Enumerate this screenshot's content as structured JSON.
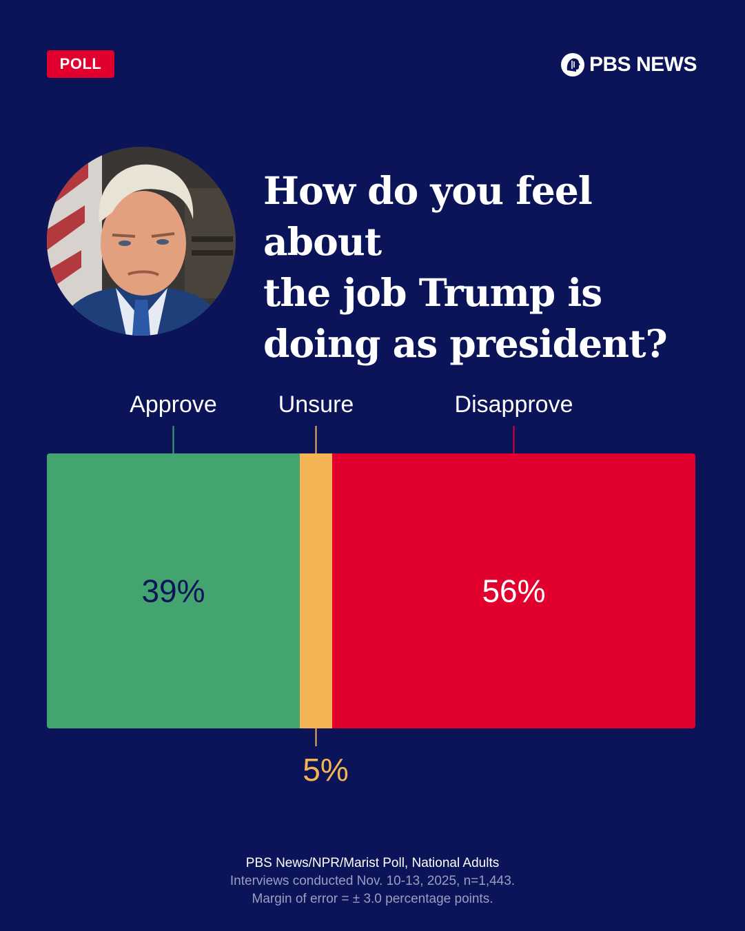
{
  "badge": {
    "label": "POLL"
  },
  "brand": {
    "name": "PBS NEWS",
    "logo_icon": "pbs-head-logo-icon"
  },
  "portrait": {
    "icon": "portrait-photo"
  },
  "question": {
    "lines": [
      "How do you feel about",
      "the job Trump is",
      "doing as president?"
    ]
  },
  "chart_data": {
    "type": "bar",
    "orientation": "horizontal-stacked",
    "categories": [
      "Approve",
      "Unsure",
      "Disapprove"
    ],
    "values": [
      39,
      5,
      56
    ],
    "value_labels": [
      "39%",
      "5%",
      "56%"
    ],
    "colors": [
      "#43a46f",
      "#f5b454",
      "#e2002e"
    ],
    "label_colors": [
      "#0b1458",
      "#f5b454",
      "#ffffff"
    ],
    "xlim": [
      0,
      100
    ],
    "grid": false
  },
  "source": {
    "line1": "PBS News/NPR/Marist Poll, National Adults",
    "line2": "Interviews conducted Nov. 10-13, 2025, n=1,443.",
    "line3": "Margin of error = ± 3.0 percentage points."
  }
}
